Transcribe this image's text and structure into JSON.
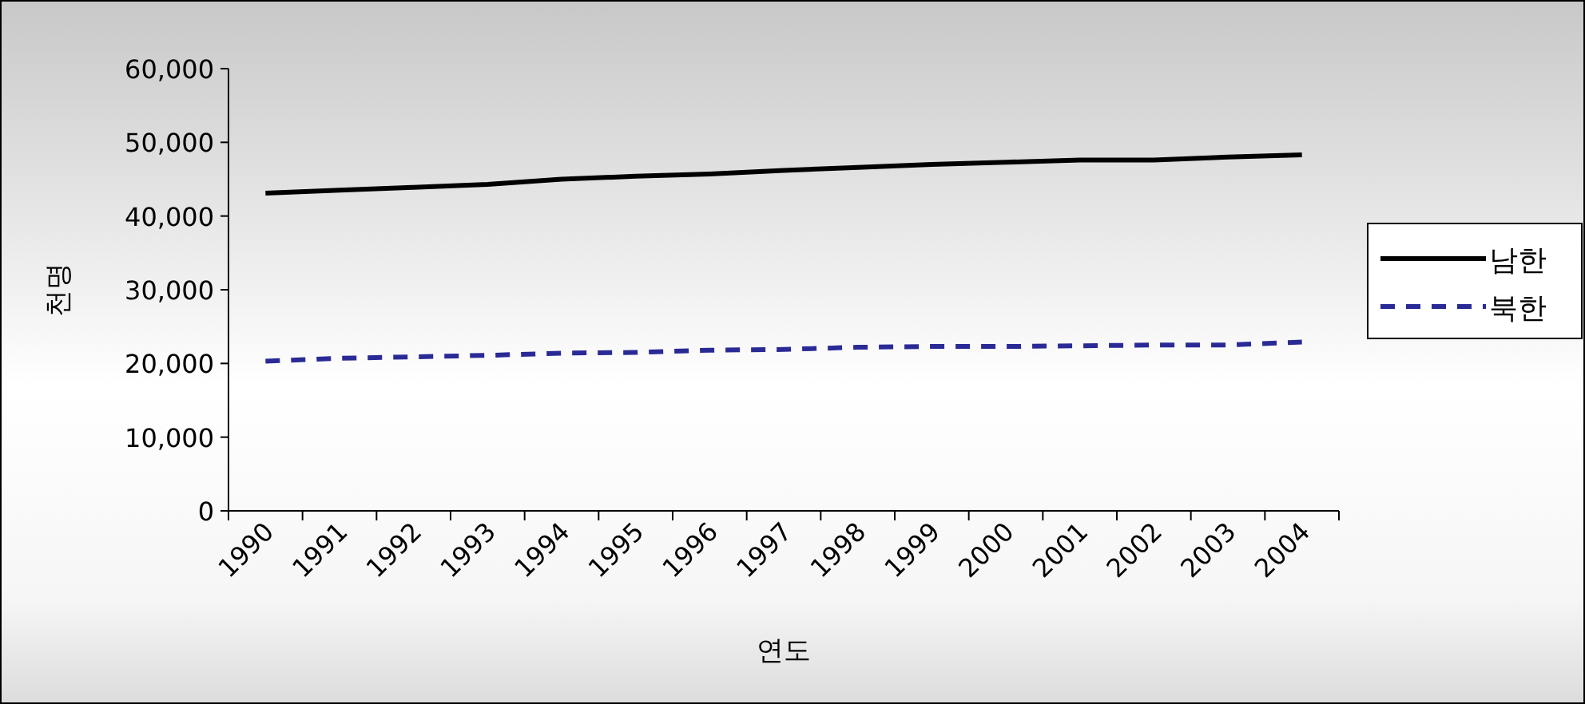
{
  "chart_data": {
    "type": "line",
    "xlabel": "연도",
    "ylabel": "천명",
    "categories": [
      "1990",
      "1991",
      "1992",
      "1993",
      "1994",
      "1995",
      "1996",
      "1997",
      "1998",
      "1999",
      "2000",
      "2001",
      "2002",
      "2003",
      "2004"
    ],
    "series": [
      {
        "name": "남한",
        "color": "#000000",
        "line_style": "solid",
        "values": [
          43100,
          43500,
          43900,
          44300,
          45000,
          45400,
          45700,
          46200,
          46600,
          47000,
          47300,
          47600,
          47600,
          48000,
          48300
        ]
      },
      {
        "name": "북한",
        "color": "#2a2a96",
        "line_style": "dashed",
        "values": [
          20300,
          20700,
          20900,
          21100,
          21400,
          21500,
          21800,
          21900,
          22200,
          22300,
          22300,
          22400,
          22500,
          22500,
          22900
        ]
      }
    ],
    "ylim": [
      0,
      60000
    ],
    "yticks": [
      0,
      {
        "value": 10000,
        "label": "10,000"
      },
      {
        "value": 20000,
        "label": "20,000"
      },
      {
        "value": 30000,
        "label": "30,000"
      },
      {
        "value": 40000,
        "label": "40,000"
      },
      {
        "value": 50000,
        "label": "50,000"
      },
      {
        "value": 60000,
        "label": "60,000"
      }
    ],
    "grid": false,
    "legend": "right",
    "marker": "none"
  }
}
